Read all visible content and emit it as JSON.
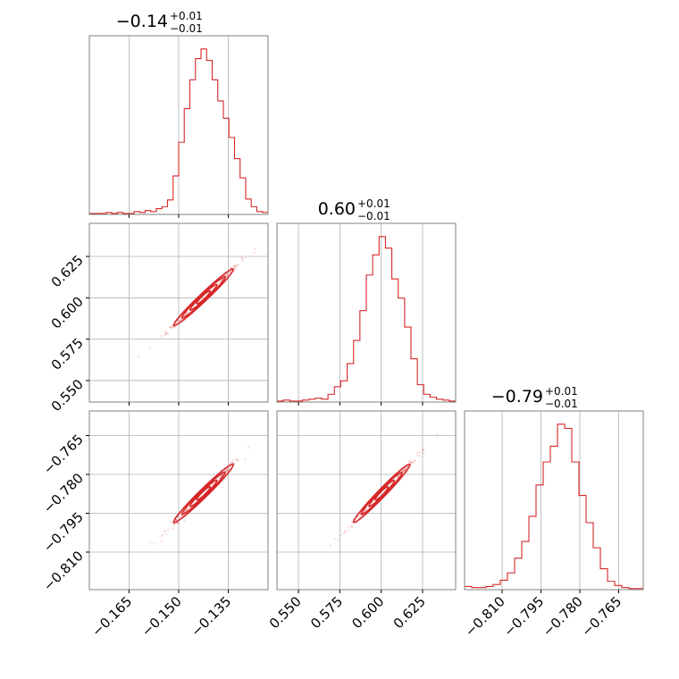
{
  "chart_data": {
    "type": "corner",
    "color": "#d62728",
    "params": [
      {
        "title": {
          "main": "−0.14",
          "sup": "+0.01",
          "sub": "−0.01"
        },
        "range": [
          -0.177,
          -0.123
        ],
        "ticks": [
          -0.165,
          -0.15,
          -0.135
        ],
        "tick_labels": [
          "−0.165",
          "−0.150",
          "−0.135"
        ]
      },
      {
        "title": {
          "main": "0.60",
          "sup": "+0.01",
          "sub": "−0.01"
        },
        "range": [
          0.537,
          0.645
        ],
        "ticks": [
          0.55,
          0.575,
          0.6,
          0.625
        ],
        "tick_labels": [
          "0.550",
          "0.575",
          "0.600",
          "0.625"
        ]
      },
      {
        "title": {
          "main": "−0.79",
          "sup": "+0.01",
          "sub": "−0.01"
        },
        "range": [
          -0.8245,
          -0.7555
        ],
        "ticks": [
          -0.81,
          -0.795,
          -0.78,
          -0.765
        ],
        "tick_labels": [
          "−0.810",
          "−0.795",
          "−0.780",
          "−0.765"
        ]
      }
    ],
    "histograms": [
      {
        "param": 0,
        "counts": [
          1,
          1,
          1,
          2,
          1,
          2,
          1,
          1,
          3,
          2,
          4,
          3,
          6,
          8,
          15,
          40,
          75,
          110,
          140,
          162,
          172,
          160,
          140,
          118,
          100,
          80,
          58,
          38,
          16,
          8,
          3,
          2
        ]
      },
      {
        "param": 1,
        "counts": [
          1,
          2,
          1,
          1,
          2,
          3,
          4,
          3,
          8,
          16,
          22,
          40,
          64,
          95,
          132,
          153,
          172,
          160,
          128,
          108,
          78,
          45,
          18,
          8,
          5,
          3,
          2,
          1
        ]
      },
      {
        "param": 2,
        "counts": [
          3,
          2,
          2,
          3,
          5,
          9,
          16,
          30,
          46,
          70,
          100,
          122,
          137,
          158,
          154,
          122,
          90,
          64,
          40,
          20,
          8,
          4,
          2,
          1,
          1
        ]
      }
    ],
    "pairs": [
      {
        "x": 0,
        "y": 1,
        "slope": 1.9,
        "x_center": -0.1425,
        "y_center": 0.6003,
        "sigma_x": 0.0045,
        "sigma_perp": 0.0008
      },
      {
        "x": 0,
        "y": 2,
        "slope": 1.25,
        "x_center": -0.1425,
        "y_center": -0.7873,
        "sigma_x": 0.0045,
        "sigma_perp": 0.0007
      },
      {
        "x": 1,
        "y": 2,
        "slope": 0.66,
        "x_center": 0.6003,
        "y_center": -0.7873,
        "sigma_x": 0.0085,
        "sigma_perp": 0.0005
      }
    ],
    "grid": true
  }
}
